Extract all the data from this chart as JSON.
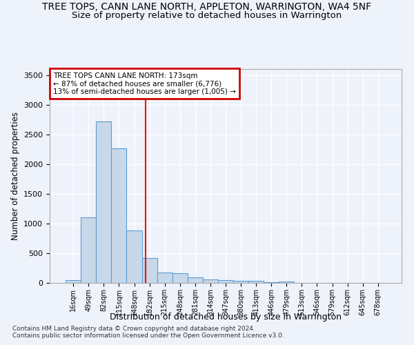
{
  "title": "TREE TOPS, CANN LANE NORTH, APPLETON, WARRINGTON, WA4 5NF",
  "subtitle": "Size of property relative to detached houses in Warrington",
  "xlabel": "Distribution of detached houses by size in Warrington",
  "ylabel": "Number of detached properties",
  "categories": [
    "16sqm",
    "49sqm",
    "82sqm",
    "115sqm",
    "148sqm",
    "182sqm",
    "215sqm",
    "248sqm",
    "281sqm",
    "314sqm",
    "347sqm",
    "380sqm",
    "413sqm",
    "446sqm",
    "479sqm",
    "513sqm",
    "546sqm",
    "579sqm",
    "612sqm",
    "645sqm",
    "678sqm"
  ],
  "values": [
    50,
    1100,
    2720,
    2270,
    880,
    420,
    170,
    165,
    90,
    60,
    50,
    40,
    30,
    10,
    20,
    0,
    0,
    0,
    0,
    0,
    0
  ],
  "bar_color": "#c8d8e8",
  "bar_edge_color": "#5b9bd5",
  "annotation_line1": "TREE TOPS CANN LANE NORTH: 173sqm",
  "annotation_line2": "← 87% of detached houses are smaller (6,776)",
  "annotation_line3": "13% of semi-detached houses are larger (1,005) →",
  "annotation_box_color": "#cc0000",
  "ylim": [
    0,
    3600
  ],
  "yticks": [
    0,
    500,
    1000,
    1500,
    2000,
    2500,
    3000,
    3500
  ],
  "background_color": "#eef2fb",
  "grid_color": "#ffffff",
  "footnote1": "Contains HM Land Registry data © Crown copyright and database right 2024.",
  "footnote2": "Contains public sector information licensed under the Open Government Licence v3.0.",
  "title_fontsize": 10,
  "subtitle_fontsize": 9.5
}
